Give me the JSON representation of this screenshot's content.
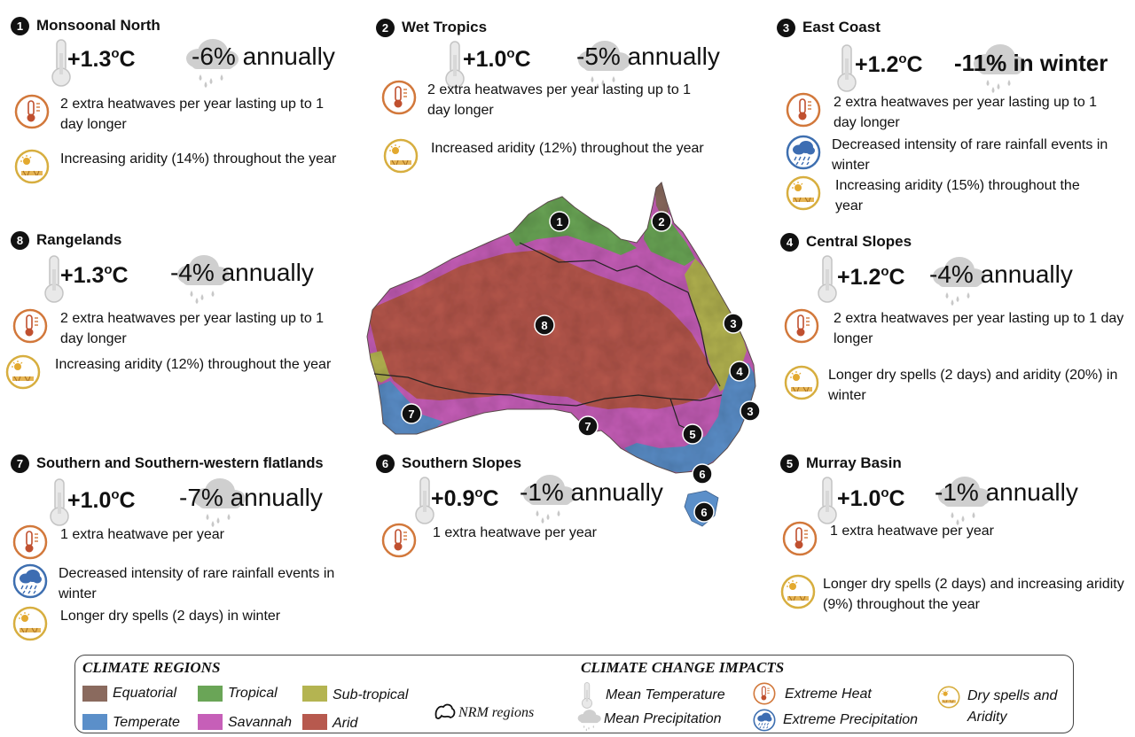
{
  "regions": {
    "monsoonal_north": {
      "number": "1",
      "name": "Monsoonal  North",
      "temp": "+1.3",
      "temp_unit": "o",
      "temp_c": "C",
      "precip": "-6% annually",
      "impacts": [
        "2 extra heatwaves per year lasting up to 1 day longer",
        "Increasing aridity (14%)  throughout the year"
      ]
    },
    "wet_tropics": {
      "number": "2",
      "name": "Wet Tropics",
      "temp": "+1.0",
      "temp_unit": "o",
      "temp_c": "C",
      "precip": "-5% annually",
      "impacts": [
        "2 extra heatwaves per year lasting up to 1 day longer",
        "Increased aridity (12%) throughout the year"
      ]
    },
    "east_coast": {
      "number": "3",
      "name": "East Coast",
      "temp": "+1.2",
      "temp_unit": "o",
      "temp_c": "C",
      "precip": "-11% in winter",
      "impacts": [
        "2 extra heatwaves per year lasting up to 1 day longer",
        "Decreased intensity of rare rainfall events in winter",
        "Increasing aridity (15%) throughout the year"
      ]
    },
    "rangelands": {
      "number": "8",
      "name": "Rangelands",
      "temp": "+1.3",
      "temp_unit": "o",
      "temp_c": "C",
      "precip": "-4% annually",
      "impacts": [
        "2 extra heatwaves per year lasting up to 1 day longer",
        "Increasing aridity (12%) throughout the year"
      ]
    },
    "central_slopes": {
      "number": "4",
      "name": "Central Slopes",
      "temp": "+1.2",
      "temp_unit": "o",
      "temp_c": "C",
      "precip": "-4% annually",
      "impacts": [
        "2 extra heatwaves per year lasting up to 1 day longer",
        "Longer dry spells (2 days) and aridity (20%) in winter"
      ]
    },
    "southern_flatlands": {
      "number": "7",
      "name": "Southern and Southern-western flatlands",
      "temp": "+1.0",
      "temp_unit": "o",
      "temp_c": "C",
      "precip": "-7% annually",
      "impacts": [
        "1 extra heatwave per year",
        "Decreased intensity of rare rainfall events in winter",
        "Longer dry spells (2 days) in winter"
      ]
    },
    "southern_slopes": {
      "number": "6",
      "name": "Southern Slopes",
      "temp": "+0.9",
      "temp_unit": "o",
      "temp_c": "C",
      "precip": "-1% annually",
      "impacts": [
        "1 extra heatwave per year"
      ]
    },
    "murray_basin": {
      "number": "5",
      "name": "Murray Basin",
      "temp": "+1.0",
      "temp_unit": "o",
      "temp_c": "C",
      "precip": "-1% annually",
      "impacts": [
        "1 extra heatwave per year",
        "Longer dry spells (2 days) and increasing aridity (9%) throughout the year"
      ]
    }
  },
  "map_markers": [
    "1",
    "2",
    "3",
    "4",
    "3",
    "5",
    "6",
    "6",
    "7",
    "7",
    "8"
  ],
  "legend": {
    "regions_title": "CLIMATE REGIONS",
    "impacts_title": "CLIMATE CHANGE IMPACTS",
    "climate_regions": [
      {
        "label": "Equatorial",
        "color": "#8a6a5e"
      },
      {
        "label": "Tropical",
        "color": "#6aa557"
      },
      {
        "label": "Sub-tropical",
        "color": "#b4b451"
      },
      {
        "label": "Temperate",
        "color": "#5b8fc9"
      },
      {
        "label": "Savannah",
        "color": "#c65fb8"
      },
      {
        "label": "Arid",
        "color": "#b7594e"
      }
    ],
    "nrm": "NRM regions",
    "impacts": [
      "Mean Temperature",
      "Mean Precipitation",
      "Extreme Heat",
      "Extreme Precipitation",
      "Dry spells and",
      "Aridity"
    ]
  }
}
